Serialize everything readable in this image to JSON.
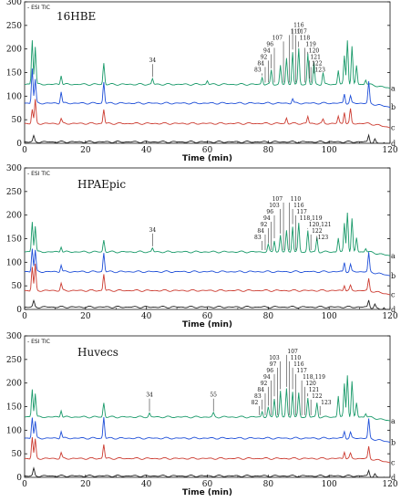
{
  "chart_data": [
    {
      "type": "line",
      "title": "16HBE",
      "legend_text": "- ESI TIC",
      "xlabel": "Time (min)",
      "xlim": [
        0,
        120
      ],
      "ylim": [
        0,
        300
      ],
      "x_ticks": [
        "0",
        "20",
        "40",
        "60",
        "80",
        "100",
        "120"
      ],
      "y_ticks": [
        "0",
        "50",
        "100",
        "150",
        "200",
        "250",
        "300"
      ],
      "series": [
        {
          "name": "a",
          "color": "#1a9a6a",
          "baseline": 125,
          "peaks": [
            [
              2.5,
              95
            ],
            [
              3.5,
              80
            ],
            [
              12,
              20
            ],
            [
              26,
              45
            ],
            [
              42,
              12
            ],
            [
              60,
              8
            ],
            [
              78,
              15
            ],
            [
              81,
              30
            ],
            [
              84,
              40
            ],
            [
              86,
              55
            ],
            [
              88,
              70
            ],
            [
              90,
              75
            ],
            [
              93,
              65
            ],
            [
              95,
              45
            ],
            [
              98,
              25
            ],
            [
              103,
              30
            ],
            [
              105,
              60
            ],
            [
              106,
              95
            ],
            [
              107.5,
              80
            ],
            [
              109,
              40
            ],
            [
              112,
              10
            ]
          ]
        },
        {
          "name": "b",
          "color": "#1f4fd8",
          "baseline": 85,
          "peaks": [
            [
              2.5,
              75
            ],
            [
              3.5,
              50
            ],
            [
              12,
              25
            ],
            [
              26,
              45
            ],
            [
              88,
              10
            ],
            [
              105,
              20
            ],
            [
              107,
              15
            ],
            [
              113,
              45
            ]
          ]
        },
        {
          "name": "c",
          "color": "#cc3b30",
          "baseline": 42,
          "peaks": [
            [
              2.5,
              30
            ],
            [
              3.5,
              50
            ],
            [
              12,
              10
            ],
            [
              26,
              30
            ],
            [
              86,
              12
            ],
            [
              93,
              15
            ],
            [
              98,
              8
            ],
            [
              103,
              15
            ],
            [
              105,
              25
            ],
            [
              107,
              30
            ]
          ]
        },
        {
          "name": "d",
          "color": "#222222",
          "baseline": 3,
          "peaks": [
            [
              3,
              12
            ],
            [
              113,
              15
            ],
            [
              115,
              8
            ],
            [
              118,
              5
            ]
          ]
        }
      ],
      "peak_labels": [
        {
          "label": "34",
          "x": 42
        },
        {
          "label": "83",
          "x": 78
        },
        {
          "label": "84",
          "x": 79
        },
        {
          "label": "92",
          "x": 80
        },
        {
          "label": "94",
          "x": 81
        },
        {
          "label": "96",
          "x": 82
        },
        {
          "label": "107",
          "x": 85
        },
        {
          "label": "110",
          "x": 87
        },
        {
          "label": "116",
          "x": 88
        },
        {
          "label": "117",
          "x": 89
        },
        {
          "label": "118",
          "x": 90
        },
        {
          "label": "119",
          "x": 92
        },
        {
          "label": "120",
          "x": 93
        },
        {
          "label": "121",
          "x": 93.5
        },
        {
          "label": "122",
          "x": 94
        },
        {
          "label": "123",
          "x": 95
        }
      ]
    },
    {
      "type": "line",
      "title": "HPAEpic",
      "legend_text": "- ESI TIC",
      "xlabel": "Time (min)",
      "xlim": [
        0,
        120
      ],
      "ylim": [
        0,
        300
      ],
      "x_ticks": [
        "0",
        "20",
        "40",
        "60",
        "80",
        "100",
        "120"
      ],
      "y_ticks": [
        "0",
        "50",
        "100",
        "150",
        "200",
        "250",
        "300"
      ],
      "series": [
        {
          "name": "a",
          "color": "#1a9a6a",
          "baseline": 122,
          "peaks": [
            [
              2.5,
              65
            ],
            [
              3.5,
              55
            ],
            [
              12,
              12
            ],
            [
              26,
              25
            ],
            [
              42,
              8
            ],
            [
              80,
              15
            ],
            [
              82,
              25
            ],
            [
              84,
              35
            ],
            [
              86,
              45
            ],
            [
              88,
              55
            ],
            [
              90,
              60
            ],
            [
              93,
              45
            ],
            [
              96,
              30
            ],
            [
              103,
              30
            ],
            [
              105,
              60
            ],
            [
              106,
              85
            ],
            [
              107.5,
              70
            ],
            [
              109,
              30
            ],
            [
              112,
              8
            ]
          ]
        },
        {
          "name": "b",
          "color": "#1f4fd8",
          "baseline": 80,
          "peaks": [
            [
              2.5,
              50
            ],
            [
              3.5,
              45
            ],
            [
              12,
              15
            ],
            [
              26,
              40
            ],
            [
              105,
              20
            ],
            [
              107,
              15
            ],
            [
              113,
              40
            ]
          ]
        },
        {
          "name": "c",
          "color": "#cc3b30",
          "baseline": 40,
          "peaks": [
            [
              2.5,
              50
            ],
            [
              3.5,
              55
            ],
            [
              12,
              15
            ],
            [
              26,
              35
            ],
            [
              105,
              12
            ],
            [
              107,
              10
            ],
            [
              113,
              25
            ]
          ]
        },
        {
          "name": "d",
          "color": "#222222",
          "baseline": 5,
          "peaks": [
            [
              3,
              12
            ],
            [
              113,
              15
            ],
            [
              115,
              8
            ],
            [
              118,
              5
            ]
          ]
        }
      ],
      "peak_labels": [
        {
          "label": "34",
          "x": 42
        },
        {
          "label": "83",
          "x": 78
        },
        {
          "label": "84",
          "x": 79
        },
        {
          "label": "92",
          "x": 80
        },
        {
          "label": "94",
          "x": 81
        },
        {
          "label": "96",
          "x": 82
        },
        {
          "label": "103",
          "x": 84
        },
        {
          "label": "107",
          "x": 85
        },
        {
          "label": "110",
          "x": 87
        },
        {
          "label": "116",
          "x": 88
        },
        {
          "label": "117",
          "x": 89
        },
        {
          "label": "118,119",
          "x": 90
        },
        {
          "label": "120,121",
          "x": 93
        },
        {
          "label": "122",
          "x": 94
        },
        {
          "label": "123",
          "x": 96
        }
      ]
    },
    {
      "type": "line",
      "title": "Huvecs",
      "legend_text": "- ESI TIC",
      "xlabel": "Time (min)",
      "xlim": [
        0,
        120
      ],
      "ylim": [
        0,
        300
      ],
      "x_ticks": [
        "0",
        "20",
        "40",
        "60",
        "80",
        "100",
        "120"
      ],
      "y_ticks": [
        "0",
        "50",
        "100",
        "150",
        "200",
        "250",
        "300"
      ],
      "series": [
        {
          "name": "a",
          "color": "#1a9a6a",
          "baseline": 128,
          "peaks": [
            [
              2.5,
              60
            ],
            [
              3.5,
              50
            ],
            [
              12,
              15
            ],
            [
              26,
              30
            ],
            [
              41,
              8
            ],
            [
              62,
              8
            ],
            [
              78,
              12
            ],
            [
              80,
              20
            ],
            [
              82,
              40
            ],
            [
              84,
              55
            ],
            [
              86,
              60
            ],
            [
              88,
              55
            ],
            [
              90,
              50
            ],
            [
              93,
              40
            ],
            [
              96,
              30
            ],
            [
              103,
              45
            ],
            [
              105,
              70
            ],
            [
              106,
              90
            ],
            [
              107.5,
              75
            ],
            [
              109,
              30
            ],
            [
              112,
              8
            ]
          ]
        },
        {
          "name": "b",
          "color": "#1f4fd8",
          "baseline": 83,
          "peaks": [
            [
              2.5,
              45
            ],
            [
              3.5,
              35
            ],
            [
              12,
              15
            ],
            [
              26,
              45
            ],
            [
              105,
              15
            ],
            [
              107,
              12
            ],
            [
              113,
              40
            ]
          ]
        },
        {
          "name": "c",
          "color": "#cc3b30",
          "baseline": 40,
          "peaks": [
            [
              2.5,
              45
            ],
            [
              3.5,
              40
            ],
            [
              12,
              12
            ],
            [
              26,
              30
            ],
            [
              105,
              15
            ],
            [
              107,
              10
            ],
            [
              113,
              25
            ]
          ]
        },
        {
          "name": "d",
          "color": "#222222",
          "baseline": 3,
          "peaks": [
            [
              3,
              15
            ],
            [
              113,
              12
            ],
            [
              115,
              6
            ],
            [
              118,
              4
            ]
          ]
        }
      ],
      "peak_labels": [
        {
          "label": "34",
          "x": 41
        },
        {
          "label": "55",
          "x": 62
        },
        {
          "label": "82",
          "x": 77
        },
        {
          "label": "83",
          "x": 78
        },
        {
          "label": "84",
          "x": 79
        },
        {
          "label": "92",
          "x": 80
        },
        {
          "label": "94",
          "x": 81
        },
        {
          "label": "96",
          "x": 82
        },
        {
          "label": "97",
          "x": 83
        },
        {
          "label": "103",
          "x": 84
        },
        {
          "label": "107",
          "x": 86
        },
        {
          "label": "110",
          "x": 87
        },
        {
          "label": "116",
          "x": 88
        },
        {
          "label": "117",
          "x": 89
        },
        {
          "label": "118,119",
          "x": 91
        },
        {
          "label": "120",
          "x": 92
        },
        {
          "label": "121",
          "x": 93
        },
        {
          "label": "122",
          "x": 94
        },
        {
          "label": "123",
          "x": 97
        }
      ]
    }
  ]
}
